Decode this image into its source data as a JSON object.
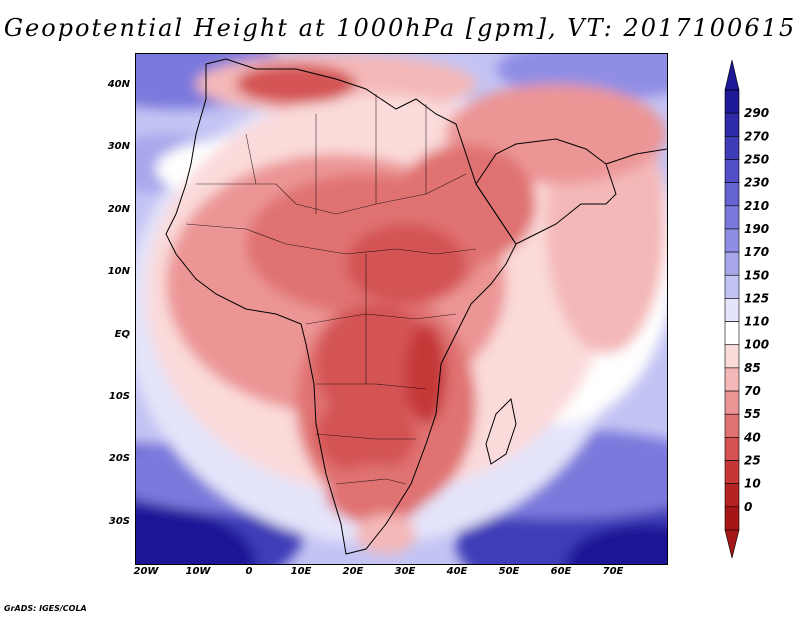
{
  "title": "Geopotential Height at 1000hPa [gpm], VT: 2017100615",
  "credit": "GrADS: IGES/COLA",
  "lat_labels": [
    "40N",
    "30N",
    "20N",
    "10N",
    "EQ",
    "10S",
    "20S",
    "30S"
  ],
  "lon_labels": [
    "20W",
    "10W",
    "0",
    "10E",
    "20E",
    "30E",
    "40E",
    "50E",
    "60E",
    "70E"
  ],
  "colorbar": {
    "levels": [
      "290",
      "270",
      "250",
      "230",
      "210",
      "190",
      "170",
      "150",
      "125",
      "110",
      "100",
      "85",
      "70",
      "55",
      "40",
      "25",
      "10",
      "0"
    ],
    "colors": [
      "#1c1896",
      "#2e2aa8",
      "#3f3cb8",
      "#524fc6",
      "#6664d2",
      "#7b79dc",
      "#908ee4",
      "#a8a7ec",
      "#c4c4f4",
      "#e4e4fa",
      "#ffffff",
      "#fbdada",
      "#f4b8b8",
      "#ec9595",
      "#e07272",
      "#d45252",
      "#c53737",
      "#b52222",
      "#a51616"
    ]
  }
}
